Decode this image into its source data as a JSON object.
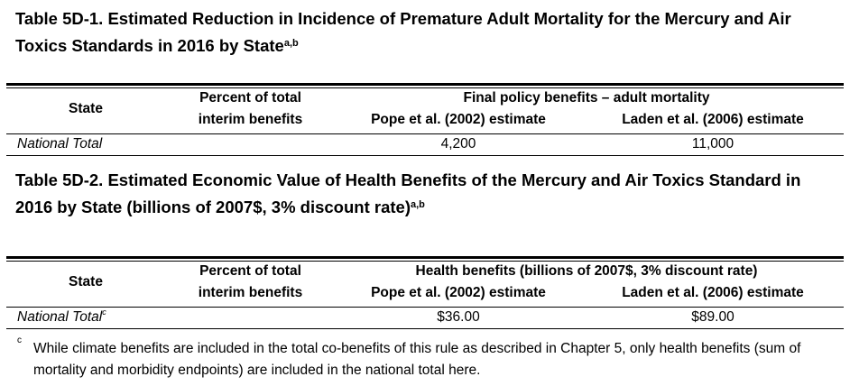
{
  "table1": {
    "title": "Table 5D-1.  Estimated Reduction in Incidence of Premature Adult Mortality for the Mercury and Air Toxics Standards in 2016 by State",
    "title_sup": "a,b",
    "col_state": "State",
    "col_percent_line1": "Percent of total",
    "col_percent_line2": "interim benefits",
    "group_header": "Final policy benefits – adult mortality",
    "col_pope": "Pope et al. (2002) estimate",
    "col_laden": "Laden et al. (2006) estimate",
    "row_label": "National Total",
    "row_percent": "",
    "row_pope": "4,200",
    "row_laden": "11,000"
  },
  "table2": {
    "title": "Table 5D-2.  Estimated Economic Value of Health Benefits of the Mercury and Air Toxics Standard in 2016 by State (billions of 2007$, 3% discount rate)",
    "title_sup": "a,b",
    "col_state": "State",
    "col_percent_line1": "Percent of total",
    "col_percent_line2": "interim benefits",
    "group_header": "Health benefits (billions of 2007$, 3% discount rate)",
    "col_pope": "Pope et al. (2002) estimate",
    "col_laden": "Laden et al. (2006) estimate",
    "row_label": "National Total",
    "row_label_sup": "c",
    "row_percent": "",
    "row_pope": "$36.00",
    "row_laden": "$89.00"
  },
  "footnote": {
    "mark": "c",
    "text": "While climate benefits are included in the total co-benefits of this rule as described in Chapter 5, only health benefits (sum of mortality and morbidity endpoints) are included in the national total here."
  }
}
